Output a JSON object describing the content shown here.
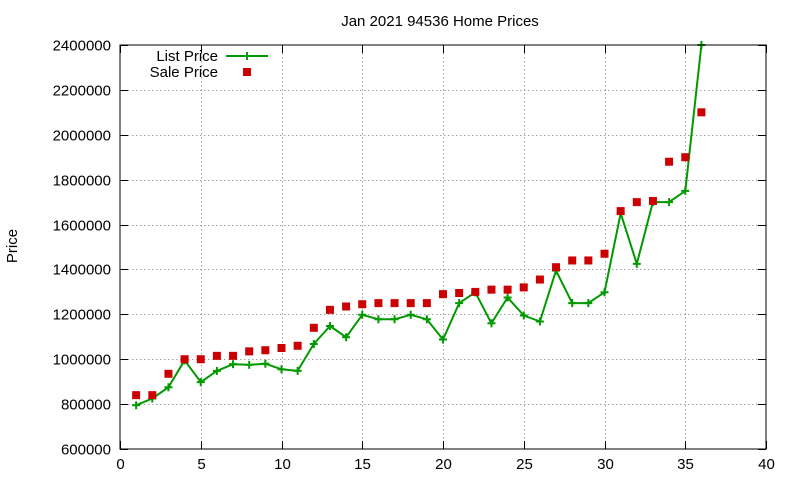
{
  "chart_data": {
    "type": "line",
    "title": "Jan 2021 94536 Home Prices",
    "xlabel": "",
    "ylabel": "Price",
    "xlim": [
      0,
      40
    ],
    "ylim": [
      600000,
      2400000
    ],
    "xticks": [
      0,
      5,
      10,
      15,
      20,
      25,
      30,
      35,
      40
    ],
    "yticks": [
      600000,
      800000,
      1000000,
      1200000,
      1400000,
      1600000,
      1800000,
      2000000,
      2200000,
      2400000
    ],
    "grid": true,
    "legend_position": "top-left",
    "colors": {
      "list": "#009900",
      "sale": "#cc0000",
      "grid": "#a0a0a0"
    },
    "series": [
      {
        "name": "List Price",
        "style": "linespoints",
        "marker": "plus",
        "x": [
          1,
          2,
          3,
          4,
          5,
          6,
          7,
          8,
          9,
          10,
          11,
          12,
          13,
          14,
          15,
          16,
          17,
          18,
          19,
          20,
          21,
          22,
          23,
          24,
          25,
          26,
          27,
          28,
          29,
          30,
          31,
          32,
          33,
          34,
          35,
          36
        ],
        "values": [
          795000,
          825000,
          875000,
          995000,
          898000,
          948000,
          978000,
          975000,
          980000,
          955000,
          948000,
          1068000,
          1148000,
          1098000,
          1198000,
          1178000,
          1178000,
          1198000,
          1178000,
          1088000,
          1250000,
          1298000,
          1160000,
          1275000,
          1195000,
          1168000,
          1395000,
          1250000,
          1250000,
          1298000,
          1650000,
          1425000,
          1700000,
          1700000,
          1750000,
          2400000
        ]
      },
      {
        "name": "Sale Price",
        "style": "points",
        "marker": "square",
        "x": [
          1,
          2,
          3,
          4,
          5,
          6,
          7,
          8,
          9,
          10,
          11,
          12,
          13,
          14,
          15,
          16,
          17,
          18,
          19,
          20,
          21,
          22,
          23,
          24,
          25,
          26,
          27,
          28,
          29,
          30,
          31,
          32,
          33,
          34,
          35,
          36
        ],
        "values": [
          840000,
          840000,
          935000,
          1000000,
          1000000,
          1015000,
          1015000,
          1035000,
          1040000,
          1050000,
          1060000,
          1140000,
          1220000,
          1235000,
          1245000,
          1250000,
          1250000,
          1250000,
          1250000,
          1290000,
          1295000,
          1300000,
          1310000,
          1310000,
          1320000,
          1355000,
          1410000,
          1440000,
          1440000,
          1470000,
          1660000,
          1700000,
          1705000,
          1880000,
          1900000,
          2100000
        ]
      }
    ]
  }
}
